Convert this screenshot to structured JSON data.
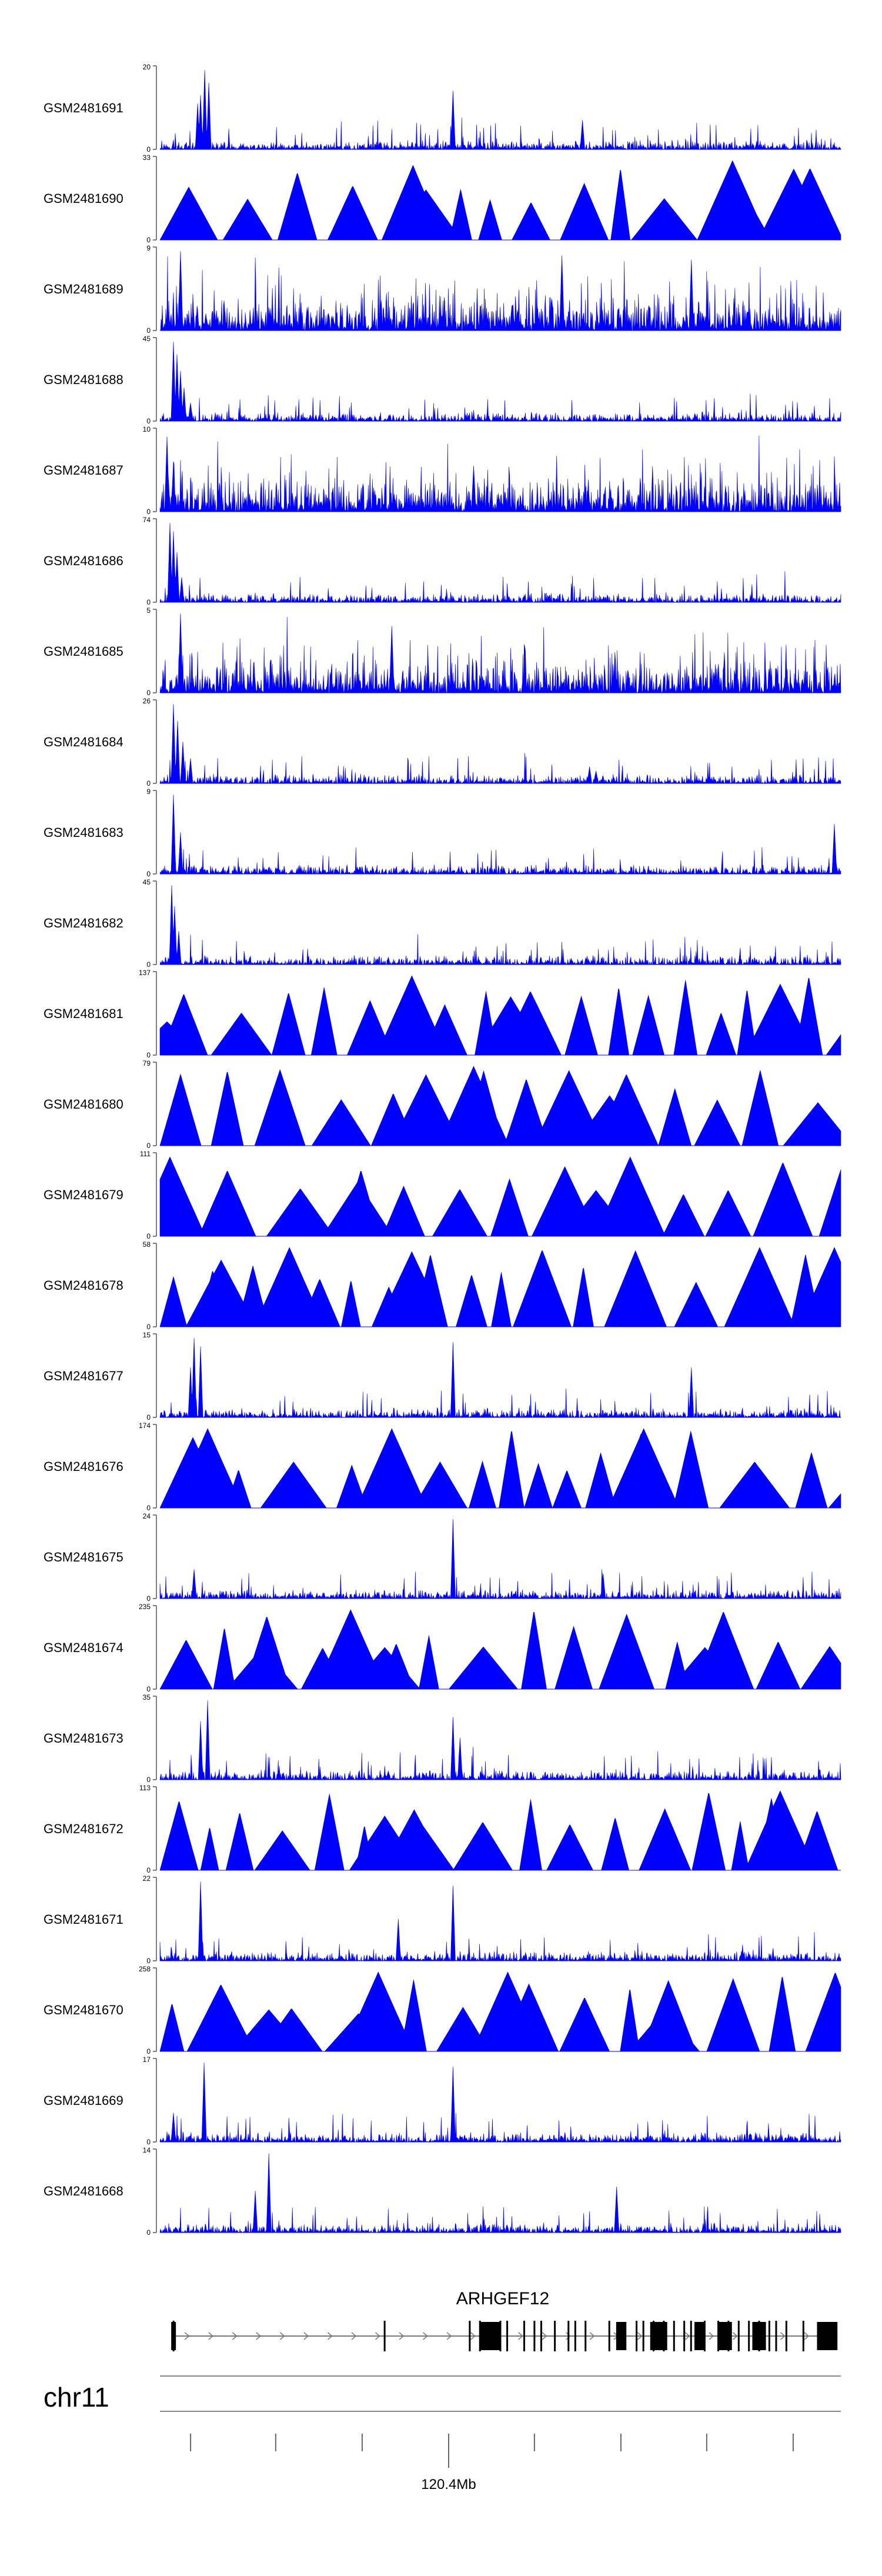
{
  "chart_data": {
    "type": "area",
    "title": "",
    "color": "#0000ff",
    "tracks": [
      {
        "name": "GSM2481691",
        "ymax": "20",
        "shape": "spiky",
        "peaks": [
          [
            0.06,
            0.65
          ],
          [
            0.055,
            0.55
          ],
          [
            0.066,
            0.95
          ],
          [
            0.072,
            0.8
          ],
          [
            0.43,
            0.7
          ],
          [
            0.62,
            0.35
          ]
        ],
        "seed": 691
      },
      {
        "name": "GSM2481690",
        "ymax": "33",
        "shape": "triangles",
        "peaks": [
          [
            0.84,
            0.95
          ],
          [
            0.93,
            0.85
          ],
          [
            0.39,
            0.6
          ]
        ],
        "seed": 690
      },
      {
        "name": "GSM2481689",
        "ymax": "9",
        "shape": "dense",
        "peaks": [
          [
            0.03,
            0.95
          ],
          [
            0.59,
            0.9
          ],
          [
            0.78,
            0.85
          ]
        ],
        "seed": 689
      },
      {
        "name": "GSM2481688",
        "ymax": "45",
        "shape": "spiky",
        "peaks": [
          [
            0.02,
            0.95
          ],
          [
            0.025,
            0.8
          ],
          [
            0.03,
            0.6
          ],
          [
            0.035,
            0.4
          ],
          [
            0.045,
            0.22
          ]
        ],
        "seed": 688
      },
      {
        "name": "GSM2481687",
        "ymax": "10",
        "shape": "dense",
        "peaks": [
          [
            0.01,
            0.9
          ],
          [
            0.02,
            0.6
          ],
          [
            0.46,
            0.55
          ]
        ],
        "seed": 687
      },
      {
        "name": "GSM2481686",
        "ymax": "74",
        "shape": "spiky",
        "peaks": [
          [
            0.015,
            0.95
          ],
          [
            0.02,
            0.85
          ],
          [
            0.025,
            0.6
          ],
          [
            0.032,
            0.3
          ]
        ],
        "seed": 686
      },
      {
        "name": "GSM2481685",
        "ymax": "5",
        "shape": "dense",
        "peaks": [
          [
            0.03,
            0.95
          ],
          [
            0.34,
            0.8
          ]
        ],
        "seed": 685
      },
      {
        "name": "GSM2481684",
        "ymax": "26",
        "shape": "spiky",
        "peaks": [
          [
            0.02,
            0.95
          ],
          [
            0.026,
            0.75
          ],
          [
            0.034,
            0.5
          ],
          [
            0.045,
            0.3
          ],
          [
            0.63,
            0.2
          ],
          [
            0.64,
            0.15
          ]
        ],
        "seed": 684
      },
      {
        "name": "GSM2481683",
        "ymax": "9",
        "shape": "spiky",
        "peaks": [
          [
            0.02,
            0.95
          ],
          [
            0.03,
            0.5
          ],
          [
            0.99,
            0.6
          ]
        ],
        "seed": 683
      },
      {
        "name": "GSM2481682",
        "ymax": "45",
        "shape": "spiky",
        "peaks": [
          [
            0.017,
            0.95
          ],
          [
            0.022,
            0.7
          ],
          [
            0.028,
            0.4
          ]
        ],
        "seed": 682
      },
      {
        "name": "GSM2481681",
        "ymax": "137",
        "shape": "triangles",
        "peaks": [
          [
            0.37,
            0.95
          ],
          [
            0.515,
            0.7
          ],
          [
            0.91,
            0.85
          ],
          [
            0.01,
            0.4
          ]
        ],
        "seed": 681
      },
      {
        "name": "GSM2481680",
        "ymax": "79",
        "shape": "triangles",
        "peaks": [
          [
            0.46,
            0.95
          ],
          [
            0.39,
            0.85
          ],
          [
            0.6,
            0.9
          ],
          [
            0.66,
            0.6
          ]
        ],
        "seed": 680
      },
      {
        "name": "GSM2481679",
        "ymax": "111",
        "shape": "triangles",
        "peaks": [
          [
            0.015,
            0.95
          ],
          [
            0.29,
            0.65
          ],
          [
            0.64,
            0.55
          ],
          [
            0.69,
            0.95
          ]
        ],
        "seed": 679
      },
      {
        "name": "GSM2481678",
        "ymax": "58",
        "shape": "triangles",
        "peaks": [
          [
            0.09,
            0.8
          ],
          [
            0.19,
            0.95
          ],
          [
            0.37,
            0.9
          ],
          [
            0.88,
            0.95
          ],
          [
            0.99,
            0.95
          ]
        ],
        "seed": 678
      },
      {
        "name": "GSM2481677",
        "ymax": "15",
        "shape": "spiky",
        "peaks": [
          [
            0.05,
            0.95
          ],
          [
            0.06,
            0.85
          ],
          [
            0.045,
            0.6
          ],
          [
            0.43,
            0.9
          ],
          [
            0.78,
            0.6
          ]
        ],
        "seed": 677
      },
      {
        "name": "GSM2481676",
        "ymax": "174",
        "shape": "triangles",
        "peaks": [
          [
            0.07,
            0.95
          ],
          [
            0.34,
            0.95
          ],
          [
            0.71,
            0.95
          ]
        ],
        "seed": 676
      },
      {
        "name": "GSM2481675",
        "ymax": "24",
        "shape": "spiky",
        "peaks": [
          [
            0.43,
            0.95
          ],
          [
            0.05,
            0.35
          ],
          [
            0.65,
            0.3
          ]
        ],
        "seed": 675
      },
      {
        "name": "GSM2481674",
        "ymax": "235",
        "shape": "triangles",
        "peaks": [
          [
            0.15,
            0.5
          ],
          [
            0.28,
            0.95
          ],
          [
            0.33,
            0.5
          ],
          [
            0.8,
            0.5
          ]
        ],
        "seed": 674
      },
      {
        "name": "GSM2481673",
        "ymax": "35",
        "shape": "spiky",
        "peaks": [
          [
            0.07,
            0.95
          ],
          [
            0.06,
            0.7
          ],
          [
            0.43,
            0.75
          ],
          [
            0.44,
            0.5
          ]
        ],
        "seed": 673
      },
      {
        "name": "GSM2481672",
        "ymax": "113",
        "shape": "triangles",
        "peaks": [
          [
            0.91,
            0.95
          ],
          [
            0.38,
            0.6
          ],
          [
            0.33,
            0.65
          ]
        ],
        "seed": 672
      },
      {
        "name": "GSM2481671",
        "ymax": "22",
        "shape": "spiky",
        "peaks": [
          [
            0.06,
            0.95
          ],
          [
            0.43,
            0.9
          ],
          [
            0.35,
            0.5
          ]
        ],
        "seed": 671
      },
      {
        "name": "GSM2481670",
        "ymax": "258",
        "shape": "triangles",
        "peaks": [
          [
            0.32,
            0.95
          ],
          [
            0.51,
            0.95
          ],
          [
            0.74,
            0.5
          ],
          [
            0.16,
            0.5
          ]
        ],
        "seed": 670
      },
      {
        "name": "GSM2481669",
        "ymax": "17",
        "shape": "spiky",
        "peaks": [
          [
            0.065,
            0.95
          ],
          [
            0.43,
            0.9
          ],
          [
            0.02,
            0.35
          ]
        ],
        "seed": 669
      },
      {
        "name": "GSM2481668",
        "ymax": "14",
        "shape": "spiky",
        "peaks": [
          [
            0.16,
            0.95
          ],
          [
            0.14,
            0.5
          ],
          [
            0.67,
            0.55
          ]
        ],
        "seed": 668
      }
    ],
    "gene": {
      "name": "ARHGEF12",
      "exons": [
        0.02,
        0.33,
        0.455,
        0.47,
        0.5,
        0.51,
        0.535,
        0.55,
        0.56,
        0.58,
        0.6,
        0.61,
        0.625,
        0.66,
        0.7,
        0.71,
        0.725,
        0.74,
        0.755,
        0.77,
        0.78,
        0.8,
        0.82,
        0.835,
        0.85,
        0.865,
        0.88,
        0.895,
        0.905,
        0.92,
        0.945
      ],
      "blocks": [
        [
          0.47,
          0.5
        ],
        [
          0.67,
          0.685
        ],
        [
          0.72,
          0.745
        ],
        [
          0.785,
          0.8
        ],
        [
          0.82,
          0.84
        ],
        [
          0.87,
          0.89
        ],
        [
          0.965,
          0.995
        ]
      ]
    },
    "chromosome": "chr11",
    "axis": {
      "ticks": [
        0.045,
        0.17,
        0.297,
        0.424,
        0.55,
        0.677,
        0.803,
        0.93
      ],
      "label": "120.4Mb",
      "label_tick": 3
    }
  }
}
